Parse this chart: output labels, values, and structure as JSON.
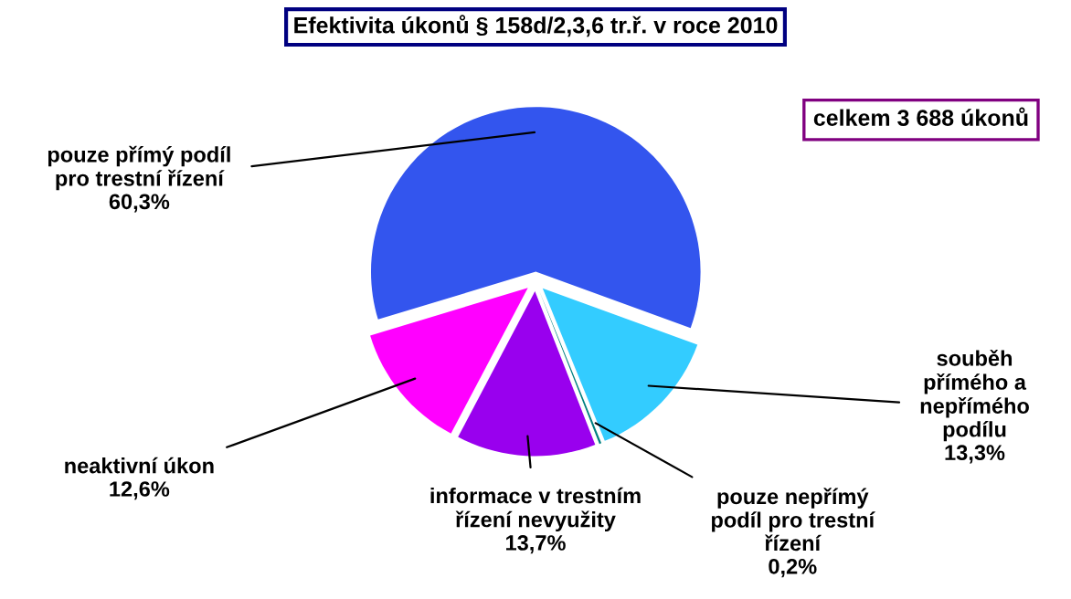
{
  "chart_data": {
    "type": "pie",
    "title": "Efektivita úkonů § 158d/2,3,6 tr.ř. v roce 2010",
    "categories": [
      "pouze přímý podíl pro trestní řízení",
      "neaktivní úkon",
      "informace v trestním řízení nevyužity",
      "pouze nepřímý podíl pro trestní řízení",
      "souběh přímého a nepřímého podílu"
    ],
    "values": [
      60.3,
      12.6,
      13.7,
      0.2,
      13.3
    ],
    "value_labels": [
      "60,3%",
      "12,6%",
      "13,7%",
      "0,2%",
      "13,3%"
    ],
    "colors": [
      "#3355ee",
      "#ff00ff",
      "#9900ee",
      "#008080",
      "#33ccff"
    ],
    "annotations": [
      "celkem 3 688 úkonů"
    ],
    "legend": false
  }
}
